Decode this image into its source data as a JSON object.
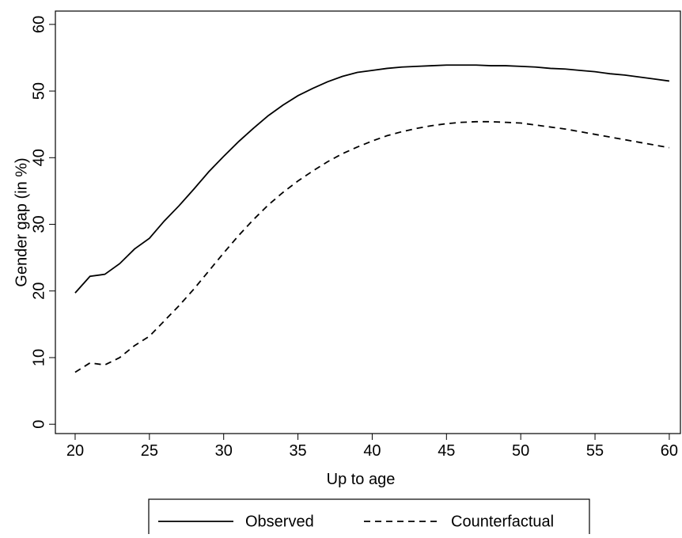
{
  "chart_data": {
    "type": "line",
    "xlabel": "Up to age",
    "ylabel": "Gender gap (in %)",
    "x": [
      20,
      21,
      22,
      23,
      24,
      25,
      26,
      27,
      28,
      29,
      30,
      31,
      32,
      33,
      34,
      35,
      36,
      37,
      38,
      39,
      40,
      41,
      42,
      43,
      44,
      45,
      46,
      47,
      48,
      49,
      50,
      51,
      52,
      53,
      54,
      55,
      56,
      57,
      58,
      59,
      60
    ],
    "series": [
      {
        "name": "Observed",
        "color": "#000000",
        "dash": "none",
        "values": [
          19.7,
          22.2,
          22.5,
          24.1,
          26.3,
          27.9,
          30.5,
          32.8,
          35.3,
          37.9,
          40.2,
          42.4,
          44.4,
          46.3,
          47.9,
          49.3,
          50.4,
          51.4,
          52.2,
          52.8,
          53.1,
          53.4,
          53.6,
          53.7,
          53.8,
          53.9,
          53.9,
          53.9,
          53.8,
          53.8,
          53.7,
          53.6,
          53.4,
          53.3,
          53.1,
          52.9,
          52.6,
          52.4,
          52.1,
          51.8,
          51.5
        ]
      },
      {
        "name": "Counterfactual",
        "color": "#000000",
        "dash": "8,6",
        "values": [
          7.8,
          9.2,
          8.9,
          10.0,
          11.8,
          13.2,
          15.5,
          17.8,
          20.3,
          23.0,
          25.7,
          28.3,
          30.7,
          32.9,
          34.8,
          36.5,
          38.0,
          39.4,
          40.6,
          41.6,
          42.5,
          43.3,
          43.9,
          44.4,
          44.8,
          45.1,
          45.3,
          45.4,
          45.4,
          45.3,
          45.2,
          44.9,
          44.6,
          44.3,
          43.9,
          43.5,
          43.1,
          42.7,
          42.3,
          41.9,
          41.5
        ]
      }
    ],
    "xlim": [
      18.67,
      60.75
    ],
    "ylim": [
      -1.4,
      62.0
    ],
    "xticks": [
      20,
      25,
      30,
      35,
      40,
      45,
      50,
      55,
      60
    ],
    "yticks": [
      0,
      10,
      20,
      30,
      40,
      50,
      60
    ],
    "legend": "bottom"
  }
}
